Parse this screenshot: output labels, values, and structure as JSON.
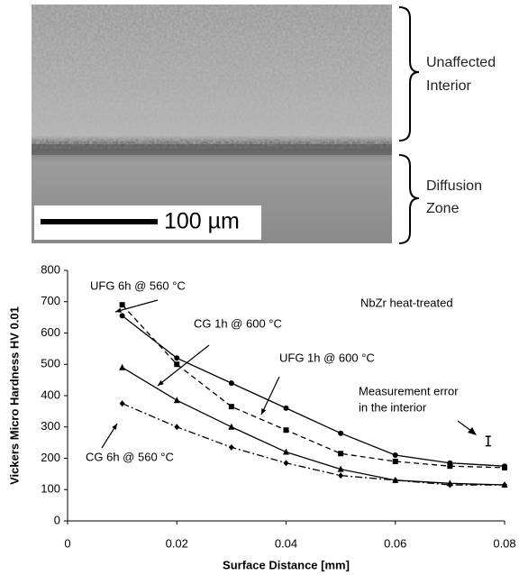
{
  "figure": {
    "unaffected_label": [
      "Unaffected",
      "Interior"
    ],
    "diffusion_label": [
      "Diffusion",
      "Zone"
    ],
    "scale_bar": "100 µm"
  },
  "chart_data": {
    "type": "line",
    "x_label": "Surface Distance [mm]",
    "y_label": "Vickers Micro Hardness HV 0.01",
    "annotations": [
      "NbZr heat-treated",
      "Measurement error",
      "in the interior"
    ],
    "x": [
      0.01,
      0.02,
      0.03,
      0.04,
      0.05,
      0.06,
      0.07,
      0.08
    ],
    "series": [
      {
        "name": "UFG 6h @ 560 °C",
        "color": "#000000",
        "marker": "square",
        "dash": "6,4",
        "values": [
          690,
          500,
          365,
          290,
          215,
          190,
          175,
          170
        ]
      },
      {
        "name": "UFG 1h @ 600 °C",
        "color": "#000000",
        "marker": "circle",
        "dash": "none",
        "values": [
          655,
          520,
          440,
          360,
          280,
          210,
          185,
          175
        ]
      },
      {
        "name": "CG 1h @ 600 °C",
        "color": "#000000",
        "marker": "triangle",
        "dash": "none",
        "values": [
          490,
          385,
          300,
          220,
          165,
          130,
          120,
          115
        ]
      },
      {
        "name": "CG 6h @ 560 °C",
        "color": "#000000",
        "marker": "diamond",
        "dash": "8,3,2,3",
        "values": [
          375,
          300,
          235,
          185,
          145,
          130,
          115,
          115
        ]
      }
    ],
    "error_bar": {
      "x": 0.077,
      "value": 255,
      "error": 15
    },
    "xlim": [
      0,
      0.08
    ],
    "ylim": [
      0,
      800
    ],
    "xticks": [
      0,
      0.02,
      0.04,
      0.06,
      0.08
    ],
    "yticks": [
      0,
      100,
      200,
      300,
      400,
      500,
      600,
      700,
      800
    ]
  }
}
